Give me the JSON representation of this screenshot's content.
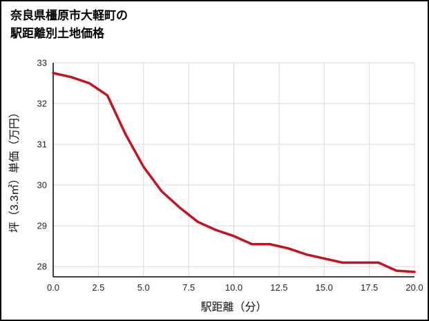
{
  "title": {
    "line1": "奈良県橿原市大軽町の",
    "line2": "駅距離別土地価格"
  },
  "chart_data": {
    "type": "line",
    "title": "奈良県橿原市大軽町の駅距離別土地価格",
    "xlabel": "駅距離（分）",
    "ylabel": "坪（3.3㎡）単価（万円）",
    "x": [
      0,
      1,
      2,
      3,
      4,
      5,
      6,
      7,
      8,
      9,
      10,
      11,
      12,
      13,
      14,
      15,
      16,
      17,
      18,
      19,
      20
    ],
    "y": [
      32.75,
      32.65,
      32.5,
      32.2,
      31.25,
      30.45,
      29.85,
      29.45,
      29.1,
      28.9,
      28.75,
      28.55,
      28.55,
      28.45,
      28.3,
      28.2,
      28.1,
      28.1,
      28.1,
      27.9,
      27.87
    ],
    "xlim": [
      0,
      20
    ],
    "ylim": [
      27.75,
      33
    ],
    "xticks": [
      0,
      2.5,
      5,
      7.5,
      10,
      12.5,
      15,
      17.5,
      20
    ],
    "xtick_labels": [
      "0.0",
      "2.5",
      "5.0",
      "7.5",
      "10.0",
      "12.5",
      "15.0",
      "17.5",
      "20.0"
    ],
    "yticks": [
      28,
      29,
      30,
      31,
      32,
      33
    ],
    "ytick_labels": [
      "28",
      "29",
      "30",
      "31",
      "32",
      "33"
    ],
    "grid": true,
    "legend": false,
    "line_color": "#c8101e",
    "grid_color": "#d9d9d9",
    "axis_color": "#000000",
    "tick_text_color": "#222222"
  }
}
